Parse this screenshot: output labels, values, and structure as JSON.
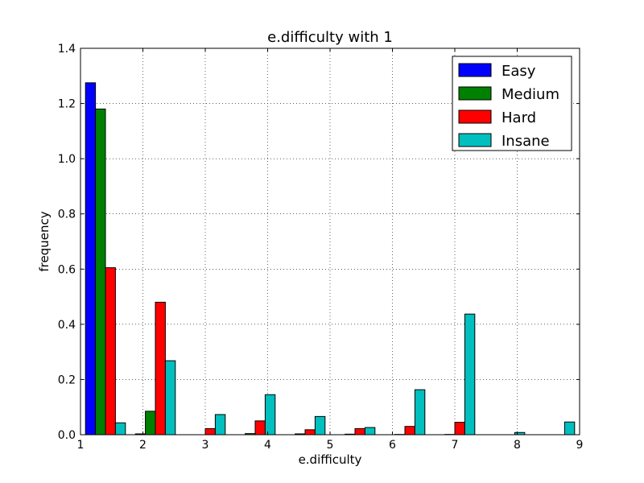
{
  "chart_data": {
    "type": "bar",
    "title": "e.difficulty with 1",
    "xlabel": "e.difficulty",
    "ylabel": "frequency",
    "xlim": [
      1,
      9
    ],
    "ylim": [
      0,
      1.4
    ],
    "xticks": [
      "1",
      "2",
      "3",
      "4",
      "5",
      "6",
      "7",
      "8",
      "9"
    ],
    "yticks": [
      "0.0",
      "0.2",
      "0.4",
      "0.6",
      "0.8",
      "1.0",
      "1.2",
      "1.4"
    ],
    "grid": true,
    "legend_position": "top-right",
    "bin_edges": [
      1.0,
      1.8,
      2.6,
      3.4,
      4.2,
      5.0,
      5.8,
      6.6,
      7.4,
      8.2,
      9.0
    ],
    "series": [
      {
        "name": "Easy",
        "color": "#0000ff",
        "values": [
          1.275,
          0.003,
          0.0,
          0.0,
          0.0,
          0.0,
          0.0,
          0.0,
          0.0,
          0.0
        ]
      },
      {
        "name": "Medium",
        "color": "#008000",
        "values": [
          1.18,
          0.085,
          0.0,
          0.004,
          0.003,
          0.002,
          0.001,
          0.001,
          0.0,
          0.0
        ]
      },
      {
        "name": "Hard",
        "color": "#ff0000",
        "values": [
          0.605,
          0.48,
          0.022,
          0.05,
          0.018,
          0.022,
          0.03,
          0.045,
          0.0,
          0.0
        ]
      },
      {
        "name": "Insane",
        "color": "#00bfbf",
        "values": [
          0.043,
          0.268,
          0.073,
          0.145,
          0.066,
          0.026,
          0.163,
          0.437,
          0.008,
          0.046
        ]
      }
    ]
  }
}
